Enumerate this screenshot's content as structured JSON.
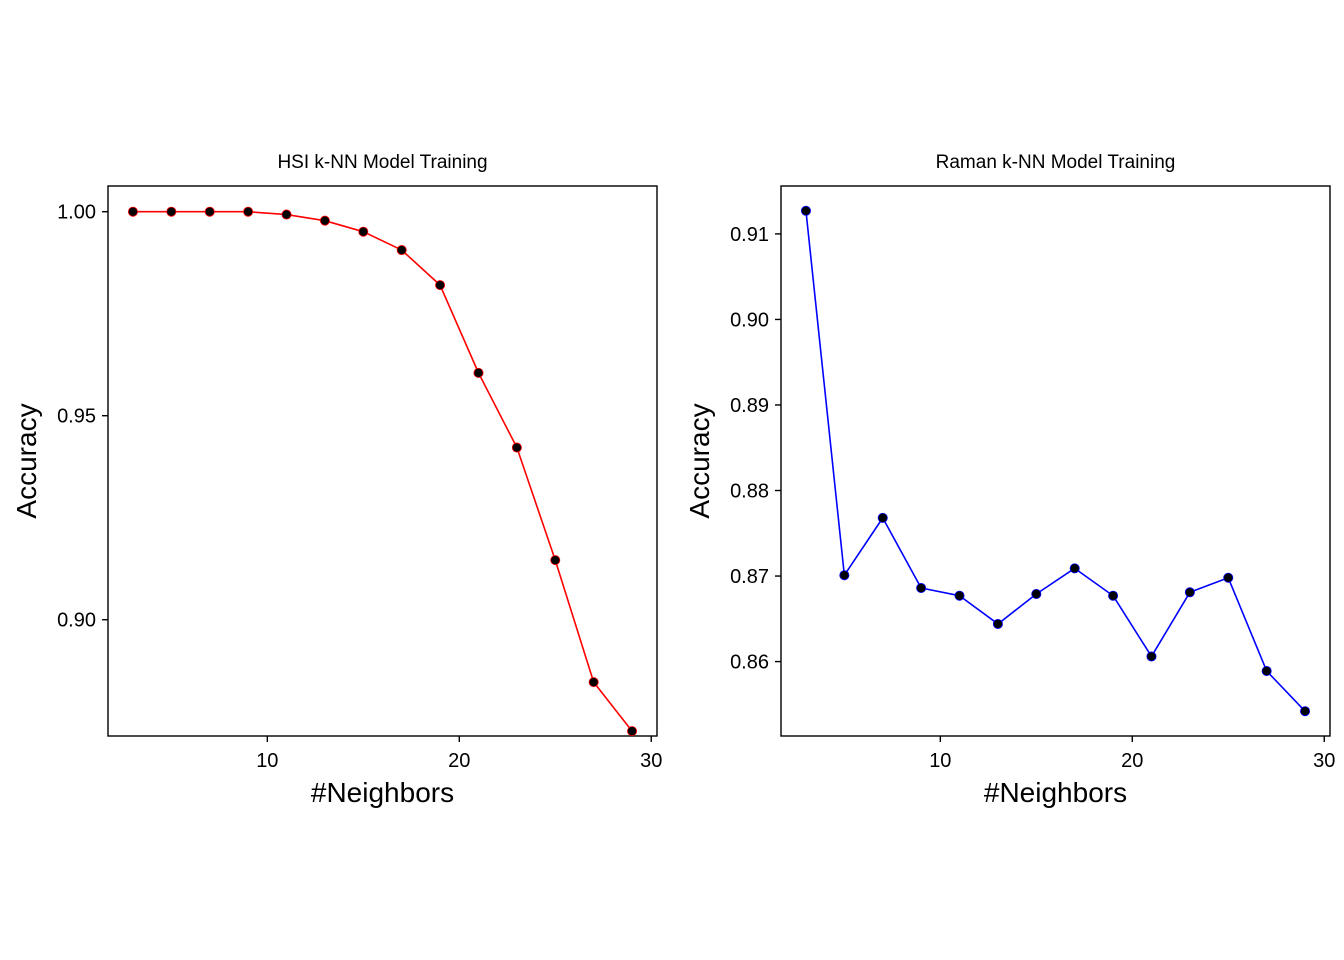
{
  "chart_data": [
    {
      "type": "line",
      "title": "HSI k-NN Model Training",
      "xlabel": "#Neighbors",
      "ylabel": "Accuracy",
      "xlim": [
        1.7,
        30.3
      ],
      "ylim": [
        0.8715,
        1.0063
      ],
      "xticks": [
        10,
        20,
        30
      ],
      "yticks": [
        0.9,
        0.95,
        1.0
      ],
      "ytick_labels": [
        "0.90",
        "0.95",
        "1.00"
      ],
      "line_color": "#ff0000",
      "marker_color": "#000000",
      "grid": false,
      "x": [
        3,
        5,
        7,
        9,
        11,
        13,
        15,
        17,
        19,
        21,
        23,
        25,
        27,
        29
      ],
      "series": [
        {
          "values": [
            1.0,
            1.0,
            1.0,
            1.0,
            0.9993,
            0.9978,
            0.9951,
            0.9906,
            0.982,
            0.9605,
            0.9422,
            0.9146,
            0.8847,
            0.8727
          ]
        }
      ]
    },
    {
      "type": "line",
      "title": "Raman k-NN Model Training",
      "xlabel": "#Neighbors",
      "ylabel": "Accuracy",
      "xlim": [
        1.7,
        30.3
      ],
      "ylim": [
        0.8513,
        0.9156
      ],
      "xticks": [
        10,
        20,
        30
      ],
      "yticks": [
        0.86,
        0.87,
        0.88,
        0.89,
        0.9,
        0.91
      ],
      "ytick_labels": [
        "0.86",
        "0.87",
        "0.88",
        "0.89",
        "0.90",
        "0.91"
      ],
      "line_color": "#0000ff",
      "marker_color": "#000000",
      "grid": false,
      "x": [
        3,
        5,
        7,
        9,
        11,
        13,
        15,
        17,
        19,
        21,
        23,
        25,
        27,
        29
      ],
      "series": [
        {
          "values": [
            0.9127,
            0.8701,
            0.8768,
            0.8686,
            0.8677,
            0.8644,
            0.8679,
            0.8709,
            0.8677,
            0.8606,
            0.8681,
            0.8698,
            0.8589,
            0.8542
          ]
        }
      ]
    }
  ]
}
